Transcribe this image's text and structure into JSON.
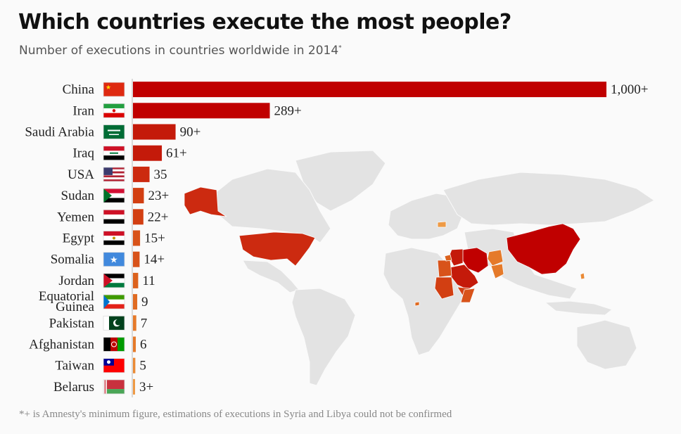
{
  "header": {
    "title": "Which countries execute the most people?",
    "subtitle": "Number of executions in countries worldwide in 2014",
    "subtitle_mark": "*"
  },
  "footnote": "*+ is Amnesty's minimum figure, estimations of executions in Syria and Libya could not be confirmed",
  "chart_data": {
    "type": "bar",
    "orientation": "horizontal",
    "title": "Which countries execute the most people?",
    "subtitle": "Number of executions in countries worldwide in 2014*",
    "categories": [
      "China",
      "Iran",
      "Saudi Arabia",
      "Iraq",
      "USA",
      "Sudan",
      "Yemen",
      "Egypt",
      "Somalia",
      "Jordan",
      "Equatorial Guinea",
      "Pakistan",
      "Afghanistan",
      "Taiwan",
      "Belarus"
    ],
    "values": [
      1000,
      289,
      90,
      61,
      35,
      23,
      22,
      15,
      14,
      11,
      9,
      7,
      6,
      5,
      3
    ],
    "value_labels": [
      "1,000+",
      "289+",
      "90+",
      "61+",
      "35",
      "23+",
      "22+",
      "15+",
      "14+",
      "11",
      "9",
      "7",
      "6",
      "5",
      "3+"
    ],
    "colors": [
      "#c00000",
      "#c00000",
      "#c41a0a",
      "#c41a0a",
      "#cc2a10",
      "#d23f12",
      "#d23f12",
      "#d8531a",
      "#d8531a",
      "#dc621e",
      "#e06b22",
      "#e57a2a",
      "#e57a2a",
      "#ea8a35",
      "#ee9a45"
    ],
    "flags": [
      "china-flag",
      "iran-flag",
      "saudi-arabia-flag",
      "iraq-flag",
      "usa-flag",
      "sudan-flag",
      "yemen-flag",
      "egypt-flag",
      "somalia-flag",
      "jordan-flag",
      "equatorial-guinea-flag",
      "pakistan-flag",
      "afghanistan-flag",
      "taiwan-flag",
      "belarus-flag"
    ],
    "xlim": [
      0,
      1000
    ],
    "background": "world map highlighting executing countries"
  }
}
